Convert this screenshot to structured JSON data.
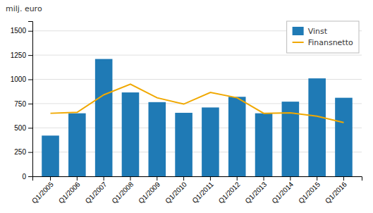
{
  "chart_data": {
    "type": "bar",
    "ylabel": "milj. euro",
    "categories": [
      "Q1/2005",
      "Q1/2006",
      "Q1/2007",
      "Q1/2008",
      "Q1/2009",
      "Q1/2010",
      "Q1/2011",
      "Q1/2012",
      "Q1/2013",
      "Q1/2014",
      "Q1/2015",
      "Q1/2016"
    ],
    "series": [
      {
        "name": "Vinst",
        "type": "bar",
        "color": "#1f7ab5",
        "values": [
          420,
          650,
          1210,
          865,
          765,
          655,
          710,
          820,
          650,
          770,
          1010,
          810
        ]
      },
      {
        "name": "Finansnetto",
        "type": "line",
        "color": "#f0a800",
        "values": [
          650,
          660,
          840,
          950,
          810,
          745,
          865,
          810,
          650,
          655,
          620,
          555
        ]
      }
    ],
    "ylim": [
      0,
      1600
    ],
    "yticks": [
      0,
      250,
      500,
      750,
      1000,
      1250,
      1500
    ],
    "grid": true,
    "legend": "top-right"
  }
}
